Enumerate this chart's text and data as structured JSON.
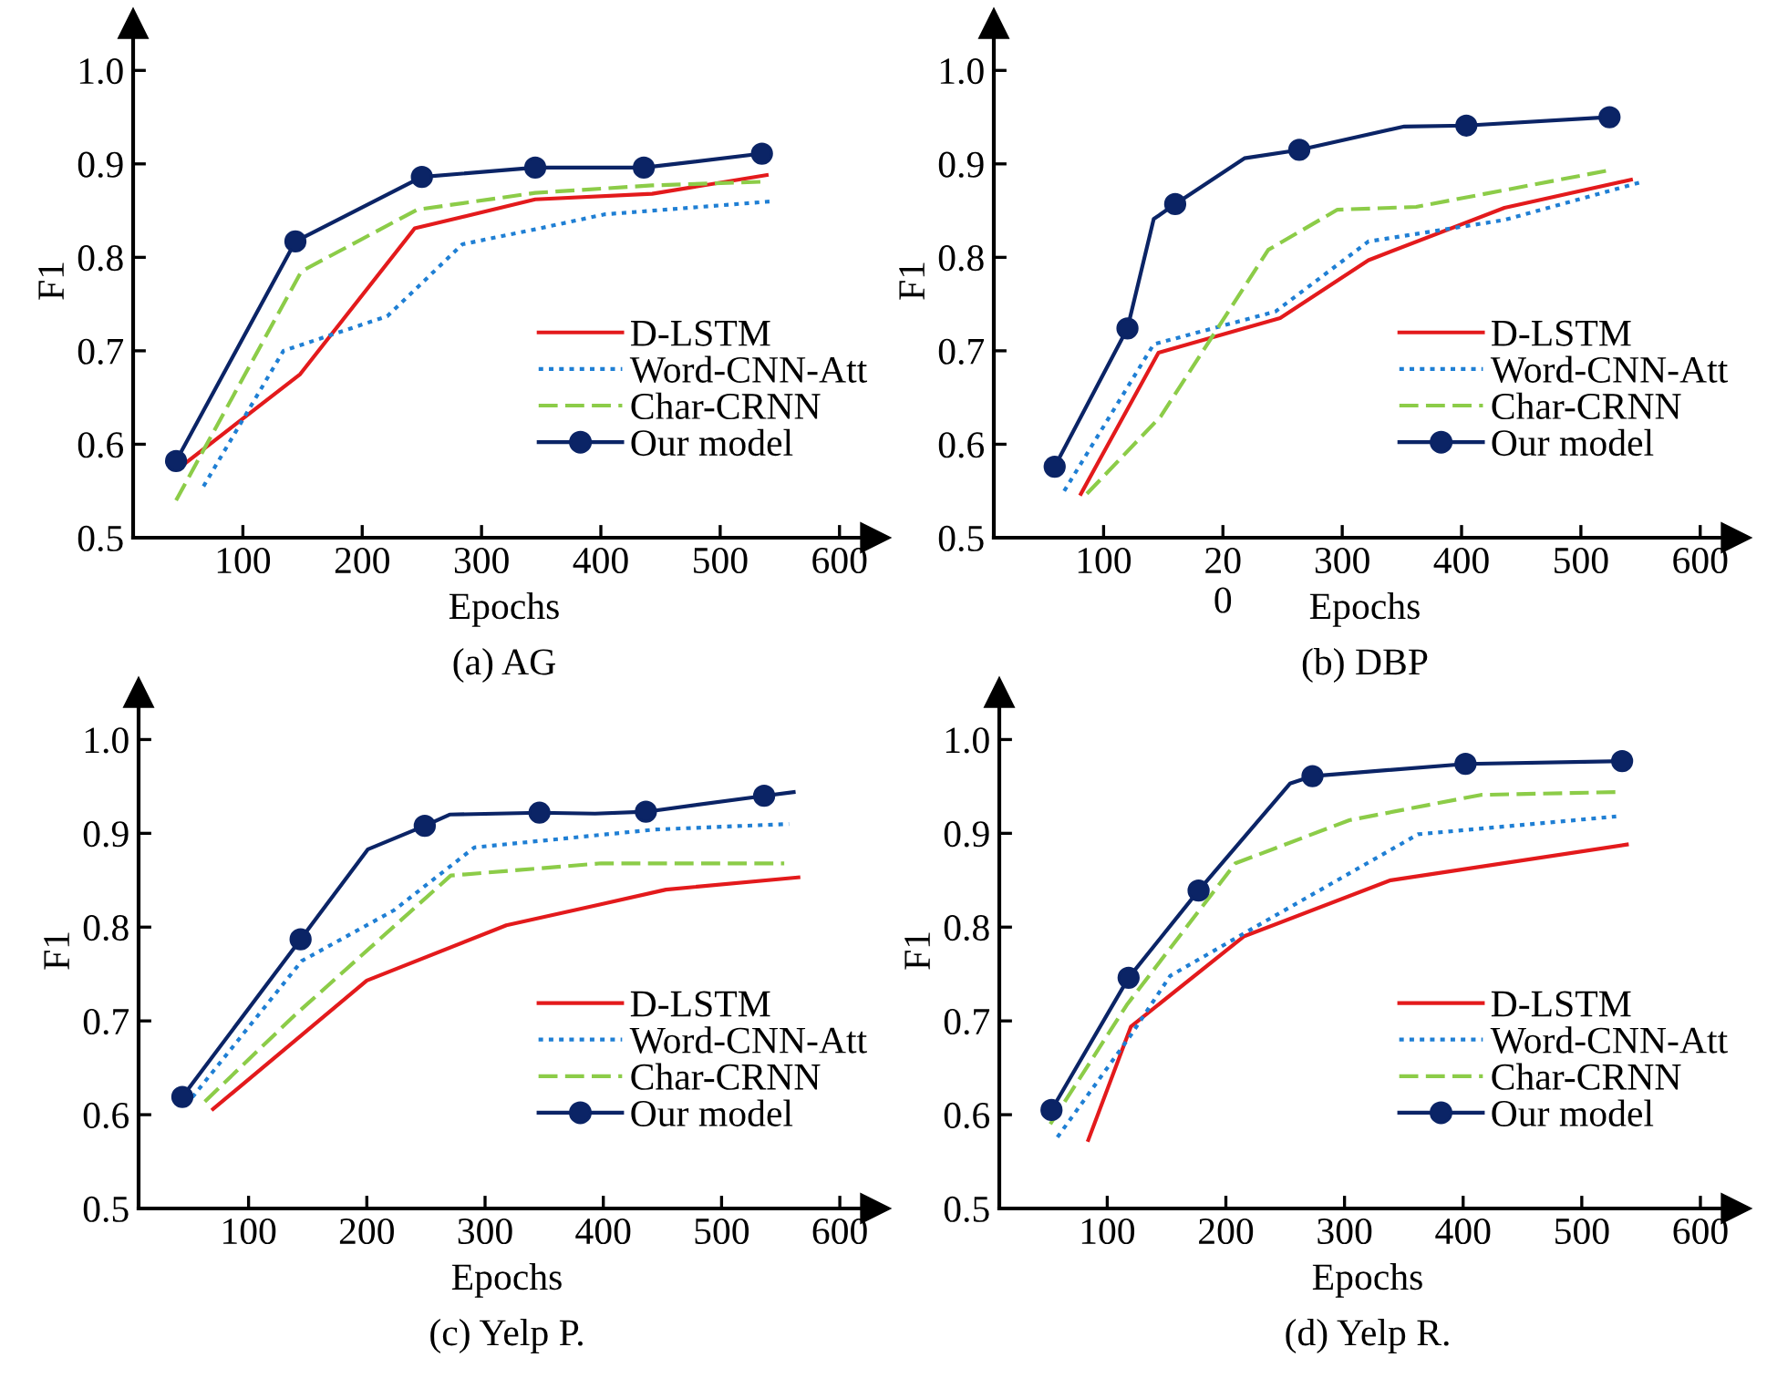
{
  "chart_data": [
    {
      "type": "line",
      "title": "(a) AG",
      "xlabel": "Epochs",
      "ylabel": "F1",
      "xlim": [
        8,
        630
      ],
      "xticks": [
        100,
        200,
        300,
        400,
        500,
        600
      ],
      "ylim": [
        0.5,
        1.05
      ],
      "yticks": [
        {
          "value": 0.5,
          "label": "0.5"
        },
        {
          "value": 0.6,
          "label": "0.6"
        },
        {
          "value": 0.7,
          "label": "0.7"
        },
        {
          "value": 0.8,
          "label": "0.8"
        },
        {
          "value": 0.9,
          "label": "0.9"
        },
        {
          "value": 1.0,
          "label": "1.0"
        }
      ],
      "grid": false,
      "legend": "right",
      "series": [
        {
          "name": "D-LSTM",
          "color": "#e31a1c",
          "line_style": "solid",
          "x": [
            47,
            148,
            244,
            345,
            443,
            539
          ],
          "values": [
            0.575,
            0.675,
            0.831,
            0.862,
            0.868,
            0.888
          ]
        },
        {
          "name": "Word-CNN-Att",
          "color": "#1f7fd4",
          "line_style": "dotted",
          "x": [
            67,
            134,
            221,
            284,
            345,
            403,
            544
          ],
          "values": [
            0.555,
            0.7,
            0.737,
            0.814,
            0.83,
            0.846,
            0.86
          ]
        },
        {
          "name": "Char-CRNN",
          "color": "#8ccc48",
          "line_style": "dashed",
          "x": [
            44,
            149,
            246,
            345,
            443,
            539
          ],
          "values": [
            0.54,
            0.785,
            0.851,
            0.869,
            0.877,
            0.881
          ]
        },
        {
          "name": "Our model",
          "color": "#0b2466",
          "line_style": "solid",
          "x": [
            44,
            144,
            250,
            345,
            436,
            535
          ],
          "values": [
            0.582,
            0.817,
            0.886,
            0.896,
            0.896,
            0.911
          ]
        },
        {
          "type": "scatter",
          "color": "#0b2466",
          "marker": "circle",
          "x": [
            44,
            144,
            250,
            345,
            436,
            535
          ],
          "values": [
            0.582,
            0.817,
            0.886,
            0.896,
            0.896,
            0.911
          ]
        }
      ]
    },
    {
      "type": "line",
      "title": "(b) DBP",
      "xlabel": "Epochs",
      "ylabel": "F1",
      "xlim": [
        8,
        630
      ],
      "xticks": [
        100,
        {
          "value": 200,
          "label": "20\n0"
        },
        300,
        400,
        500,
        600
      ],
      "ylim": [
        0.5,
        1.05
      ],
      "yticks": [
        {
          "value": 0.5,
          "label": "0.5"
        },
        {
          "value": 0.6,
          "label": "0.6"
        },
        {
          "value": 0.7,
          "label": "0.7"
        },
        {
          "value": 0.8,
          "label": "0.8"
        },
        {
          "value": 0.9,
          "label": "0.9"
        },
        {
          "value": 1.0,
          "label": "1.0"
        }
      ],
      "grid": false,
      "legend": "right",
      "series": [
        {
          "name": "D-LSTM",
          "color": "#e31a1c",
          "line_style": "solid",
          "x": [
            81,
            146,
            248,
            322,
            436,
            542
          ],
          "values": [
            0.547,
            0.698,
            0.735,
            0.797,
            0.853,
            0.883
          ]
        },
        {
          "name": "Word-CNN-Att",
          "color": "#1f7fd4",
          "line_style": "dotted",
          "x": [
            67,
            142,
            244,
            322,
            436,
            549
          ],
          "values": [
            0.55,
            0.707,
            0.742,
            0.817,
            0.84,
            0.88
          ]
        },
        {
          "name": "Char-CRNN",
          "color": "#8ccc48",
          "line_style": "dashed",
          "x": [
            86,
            148,
            238,
            296,
            362,
            523
          ],
          "values": [
            0.547,
            0.63,
            0.808,
            0.851,
            0.854,
            0.893
          ]
        },
        {
          "name": "Our model",
          "color": "#0b2466",
          "line_style": "solid",
          "x": [
            59,
            120,
            142,
            160,
            218,
            264,
            352,
            404,
            524
          ],
          "values": [
            0.576,
            0.724,
            0.841,
            0.857,
            0.906,
            0.915,
            0.94,
            0.941,
            0.95
          ]
        },
        {
          "type": "scatter",
          "color": "#0b2466",
          "marker": "circle",
          "x": [
            59,
            120,
            160,
            264,
            404,
            524
          ],
          "values": [
            0.576,
            0.724,
            0.857,
            0.915,
            0.941,
            0.95
          ]
        }
      ]
    },
    {
      "type": "line",
      "title": "(c) Yelp P.",
      "xlabel": "Epochs",
      "ylabel": "F1",
      "xlim": [
        7,
        630
      ],
      "xticks": [
        100,
        200,
        300,
        400,
        500,
        600
      ],
      "ylim": [
        0.5,
        1.05
      ],
      "yticks": [
        {
          "value": 0.5,
          "label": "0.5"
        },
        {
          "value": 0.6,
          "label": "0.6"
        },
        {
          "value": 0.7,
          "label": "0.7"
        },
        {
          "value": 0.8,
          "label": "0.8"
        },
        {
          "value": 0.9,
          "label": "0.9"
        },
        {
          "value": 1.0,
          "label": "1.0"
        }
      ],
      "grid": false,
      "legend": "right",
      "series": [
        {
          "name": "D-LSTM",
          "color": "#e31a1c",
          "line_style": "solid",
          "x": [
            70,
            145,
            200,
            318,
            397,
            453,
            565
          ],
          "values": [
            0.606,
            0.685,
            0.743,
            0.802,
            0.824,
            0.84,
            0.853
          ]
        },
        {
          "name": "Word-CNN-Att",
          "color": "#1f7fd4",
          "line_style": "dotted",
          "x": [
            47,
            145,
            223,
            291,
            443,
            557
          ],
          "values": [
            0.61,
            0.764,
            0.818,
            0.885,
            0.904,
            0.91
          ]
        },
        {
          "name": "Char-CRNN",
          "color": "#8ccc48",
          "line_style": "dashed",
          "x": [
            63,
            139,
            271,
            398,
            553
          ],
          "values": [
            0.614,
            0.706,
            0.855,
            0.868,
            0.868
          ]
        },
        {
          "name": "Our model",
          "color": "#0b2466",
          "line_style": "solid",
          "x": [
            44,
            144,
            201,
            249,
            270,
            346,
            393,
            436,
            536,
            561
          ],
          "values": [
            0.619,
            0.787,
            0.883,
            0.908,
            0.92,
            0.922,
            0.921,
            0.923,
            0.94,
            0.944
          ]
        },
        {
          "type": "scatter",
          "color": "#0b2466",
          "marker": "circle",
          "x": [
            44,
            144,
            249,
            346,
            436,
            536
          ],
          "values": [
            0.619,
            0.787,
            0.908,
            0.922,
            0.923,
            0.94
          ]
        }
      ]
    },
    {
      "type": "line",
      "title": "(d) Yelp R.",
      "xlabel": "Epochs",
      "ylabel": "F1",
      "xlim": [
        9,
        630
      ],
      "xticks": [
        100,
        200,
        300,
        400,
        500,
        600
      ],
      "ylim": [
        0.5,
        1.05
      ],
      "yticks": [
        {
          "value": 0.5,
          "label": "0.5"
        },
        {
          "value": 0.6,
          "label": "0.6"
        },
        {
          "value": 0.7,
          "label": "0.7"
        },
        {
          "value": 0.8,
          "label": "0.8"
        },
        {
          "value": 0.9,
          "label": "0.9"
        },
        {
          "value": 1.0,
          "label": "1.0"
        }
      ],
      "grid": false,
      "legend": "right",
      "series": [
        {
          "name": "D-LSTM",
          "color": "#e31a1c",
          "line_style": "solid",
          "x": [
            84,
            120,
            215,
            339,
            538
          ],
          "values": [
            0.573,
            0.694,
            0.79,
            0.85,
            0.888
          ]
        },
        {
          "name": "Word-CNN-Att",
          "color": "#1f7fd4",
          "line_style": "dotted",
          "x": [
            58,
            120,
            153,
            219,
            362,
            529
          ],
          "values": [
            0.576,
            0.685,
            0.748,
            0.796,
            0.899,
            0.918
          ]
        },
        {
          "name": "Char-CRNN",
          "color": "#8ccc48",
          "line_style": "dashed",
          "x": [
            52,
            117,
            208,
            304,
            415,
            529
          ],
          "values": [
            0.59,
            0.718,
            0.868,
            0.914,
            0.941,
            0.944
          ]
        },
        {
          "name": "Our model",
          "color": "#0b2466",
          "line_style": "solid",
          "x": [
            53,
            118,
            177,
            254,
            273,
            402,
            534
          ],
          "values": [
            0.605,
            0.746,
            0.839,
            0.953,
            0.961,
            0.974,
            0.977
          ]
        },
        {
          "type": "scatter",
          "color": "#0b2466",
          "marker": "circle",
          "x": [
            53,
            118,
            177,
            273,
            402,
            534
          ],
          "values": [
            0.605,
            0.746,
            0.839,
            0.961,
            0.974,
            0.977
          ]
        }
      ]
    }
  ]
}
